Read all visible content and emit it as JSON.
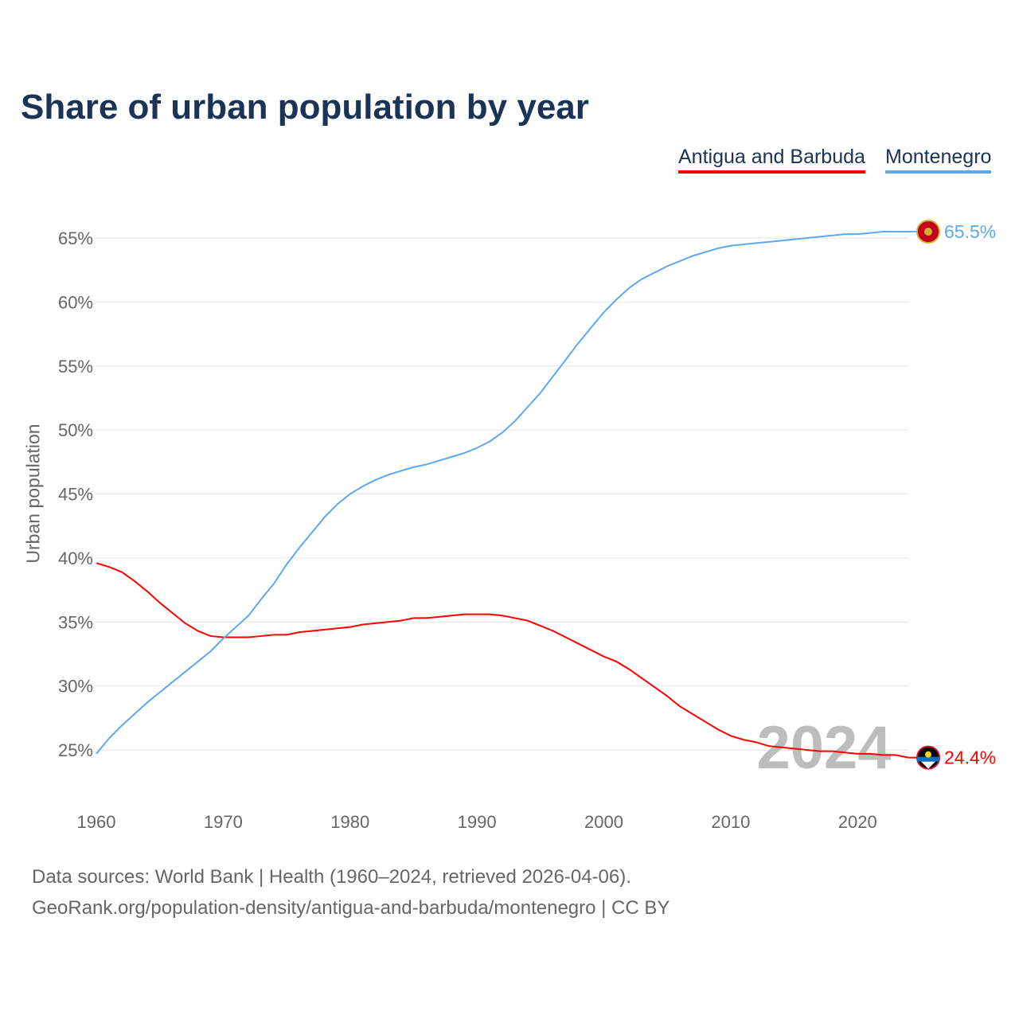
{
  "title": "Share of urban population by year",
  "legend": [
    {
      "name": "Antigua and Barbuda",
      "color": "#ff0000"
    },
    {
      "name": "Montenegro",
      "color": "#5ea8ee"
    }
  ],
  "footer": {
    "line1": "Data sources: World Bank | Health (1960–2024, retrieved 2026-04-06).",
    "line2": "GeoRank.org/population-density/antigua-and-barbuda/montenegro | CC BY"
  },
  "chart_data": {
    "type": "line",
    "title": "Share of urban population by year",
    "xlabel": "",
    "ylabel": "Urban population",
    "xlim": [
      1960,
      2024
    ],
    "ylim": [
      22,
      67
    ],
    "x_ticks": [
      1960,
      1970,
      1980,
      1990,
      2000,
      2010,
      2020
    ],
    "y_ticks": [
      25,
      30,
      35,
      40,
      45,
      50,
      55,
      60,
      65
    ],
    "y_tick_labels": [
      "25%",
      "30%",
      "35%",
      "40%",
      "45%",
      "50%",
      "55%",
      "60%",
      "65%"
    ],
    "grid": true,
    "legend_position": "top-right",
    "year_annotation": "2024",
    "x": [
      1960,
      1961,
      1962,
      1963,
      1964,
      1965,
      1966,
      1967,
      1968,
      1969,
      1970,
      1971,
      1972,
      1973,
      1974,
      1975,
      1976,
      1977,
      1978,
      1979,
      1980,
      1981,
      1982,
      1983,
      1984,
      1985,
      1986,
      1987,
      1988,
      1989,
      1990,
      1991,
      1992,
      1993,
      1994,
      1995,
      1996,
      1997,
      1998,
      1999,
      2000,
      2001,
      2002,
      2003,
      2004,
      2005,
      2006,
      2007,
      2008,
      2009,
      2010,
      2011,
      2012,
      2013,
      2014,
      2015,
      2016,
      2017,
      2018,
      2019,
      2020,
      2021,
      2022,
      2023,
      2024
    ],
    "series": [
      {
        "name": "Antigua and Barbuda",
        "color": "#ff0000",
        "end_label": "24.4%",
        "values": [
          39.6,
          39.3,
          38.9,
          38.2,
          37.4,
          36.5,
          35.7,
          34.9,
          34.3,
          33.9,
          33.8,
          33.8,
          33.8,
          33.9,
          34.0,
          34.0,
          34.2,
          34.3,
          34.4,
          34.5,
          34.6,
          34.8,
          34.9,
          35.0,
          35.1,
          35.3,
          35.3,
          35.4,
          35.5,
          35.6,
          35.6,
          35.6,
          35.5,
          35.3,
          35.1,
          34.7,
          34.3,
          33.8,
          33.3,
          32.8,
          32.3,
          31.9,
          31.3,
          30.6,
          29.9,
          29.2,
          28.4,
          27.8,
          27.2,
          26.6,
          26.1,
          25.8,
          25.6,
          25.3,
          25.2,
          25.1,
          25.0,
          24.9,
          24.9,
          24.8,
          24.7,
          24.7,
          24.6,
          24.6,
          24.4
        ]
      },
      {
        "name": "Montenegro",
        "color": "#5ea8ee",
        "end_label": "65.5%",
        "values": [
          24.7,
          25.9,
          26.9,
          27.8,
          28.7,
          29.5,
          30.3,
          31.1,
          31.9,
          32.7,
          33.7,
          34.6,
          35.5,
          36.8,
          38.0,
          39.5,
          40.8,
          42.0,
          43.2,
          44.2,
          45.0,
          45.6,
          46.1,
          46.5,
          46.8,
          47.1,
          47.3,
          47.6,
          47.9,
          48.2,
          48.6,
          49.1,
          49.8,
          50.7,
          51.8,
          52.9,
          54.2,
          55.5,
          56.8,
          58.0,
          59.2,
          60.2,
          61.1,
          61.8,
          62.3,
          62.8,
          63.2,
          63.6,
          63.9,
          64.2,
          64.4,
          64.5,
          64.6,
          64.7,
          64.8,
          64.9,
          65.0,
          65.1,
          65.2,
          65.3,
          65.3,
          65.4,
          65.5,
          65.5,
          65.5
        ]
      }
    ]
  }
}
